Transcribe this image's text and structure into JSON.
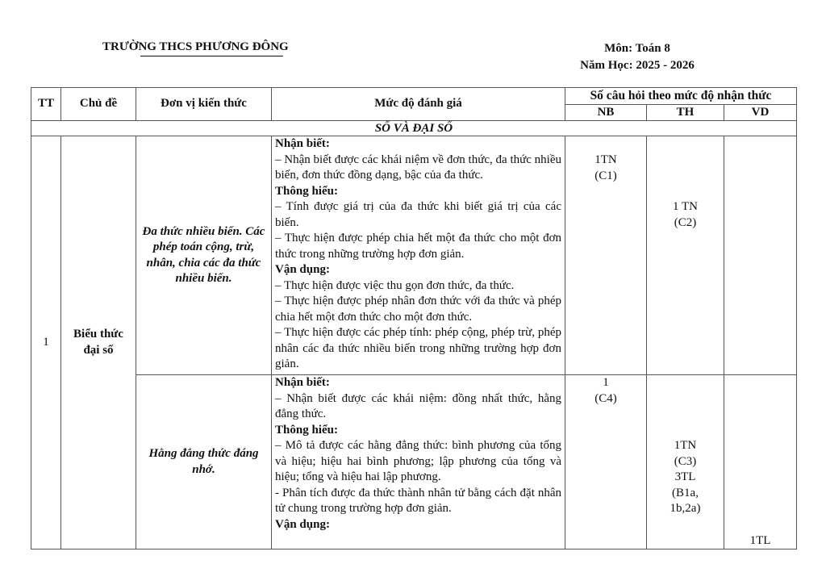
{
  "header": {
    "school": "TRƯỜNG THCS PHƯƠNG ĐÔNG",
    "subject": "Môn: Toán 8",
    "year": "Năm Học: 2025 - 2026"
  },
  "table": {
    "headers": {
      "tt": "TT",
      "topic": "Chủ đề",
      "unit": "Đơn vị kiến thức",
      "level": "Mức độ đánh giá",
      "count": "Số câu hỏi theo mức độ nhận thức",
      "nb": "NB",
      "th": "TH",
      "vd": "VD"
    },
    "section": "SỐ VÀ ĐẠI SỐ",
    "rows": [
      {
        "tt": "1",
        "topic": "Biểu thức đại số",
        "units": [
          {
            "name": "Đa thức nhiều biến. Các phép toán cộng, trừ, nhân, chia các đa thức nhiều biến.",
            "desc": [
              "Nhận biết:",
              "– Nhận biết được các khái niệm về đơn thức, đa thức nhiều biến, đơn thức đồng dạng, bậc của đa thức.",
              "Thông hiểu:",
              " – Tính được giá trị của đa thức khi biết giá trị của các biến.",
              " – Thực hiện được phép chia hết một đa thức cho một đơn thức trong những trường hợp đơn giản.",
              "Vận dụng:",
              "– Thực hiện được việc thu gọn đơn thức, đa thức.",
              "– Thực hiện được phép nhân đơn thức với đa thức và phép chia hết một đơn thức cho một đơn thức.",
              "– Thực hiện được các phép tính: phép cộng, phép trừ, phép nhân các đa thức nhiều biến trong những trường hợp đơn giản."
            ],
            "nb": [
              "1TN",
              "(C1)"
            ],
            "th": [
              "1 TN",
              "(C2)"
            ],
            "vd": []
          },
          {
            "name": "Hằng đẳng thức đáng nhớ.",
            "desc": [
              "Nhận biết:",
              "– Nhận biết được các khái niệm: đồng nhất thức, hằng đẳng thức.",
              "Thông hiểu:",
              "– Mô tả được các hằng đẳng thức: bình phương của tổng và hiệu; hiệu hai bình phương; lập phương của tổng và hiệu; tổng và hiệu hai lập phương.",
              "- Phân tích được đa thức thành nhân tử bằng cách đặt nhân tử chung trong trường hợp đơn giản.",
              "Vận dụng:"
            ],
            "nb": [
              "1",
              "(C4)"
            ],
            "th": [
              "1TN",
              "(C3)",
              "3TL",
              "(B1a,",
              "1b,2a)"
            ],
            "vd": [
              "1TL"
            ]
          }
        ]
      }
    ]
  }
}
